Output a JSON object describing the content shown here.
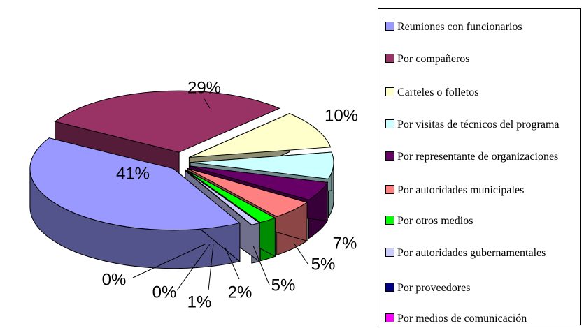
{
  "chart_data": {
    "type": "pie",
    "categories": [
      "Reuniones con funcionarios",
      "Por compañeros",
      "Carteles o folletos",
      "Por visitas de técnicos del programa",
      "Por representante de organizaciones",
      "Por autoridades municipales",
      "Por otros medios",
      "Por autoridades gubernamentales",
      "Por proveedores",
      "Por medios de comunicación"
    ],
    "values": [
      41,
      29,
      10,
      7,
      5,
      5,
      2,
      1,
      0,
      0
    ],
    "value_labels": [
      "41%",
      "29%",
      "10%",
      "7%",
      "5%",
      "5%",
      "2%",
      "1%",
      "0%",
      "0%"
    ],
    "colors": [
      "#9999ff",
      "#993366",
      "#ffffcc",
      "#ccffff",
      "#660066",
      "#ff8080",
      "#00ff00",
      "#ccccff",
      "#000080",
      "#ff00ff"
    ],
    "legend": "right"
  }
}
